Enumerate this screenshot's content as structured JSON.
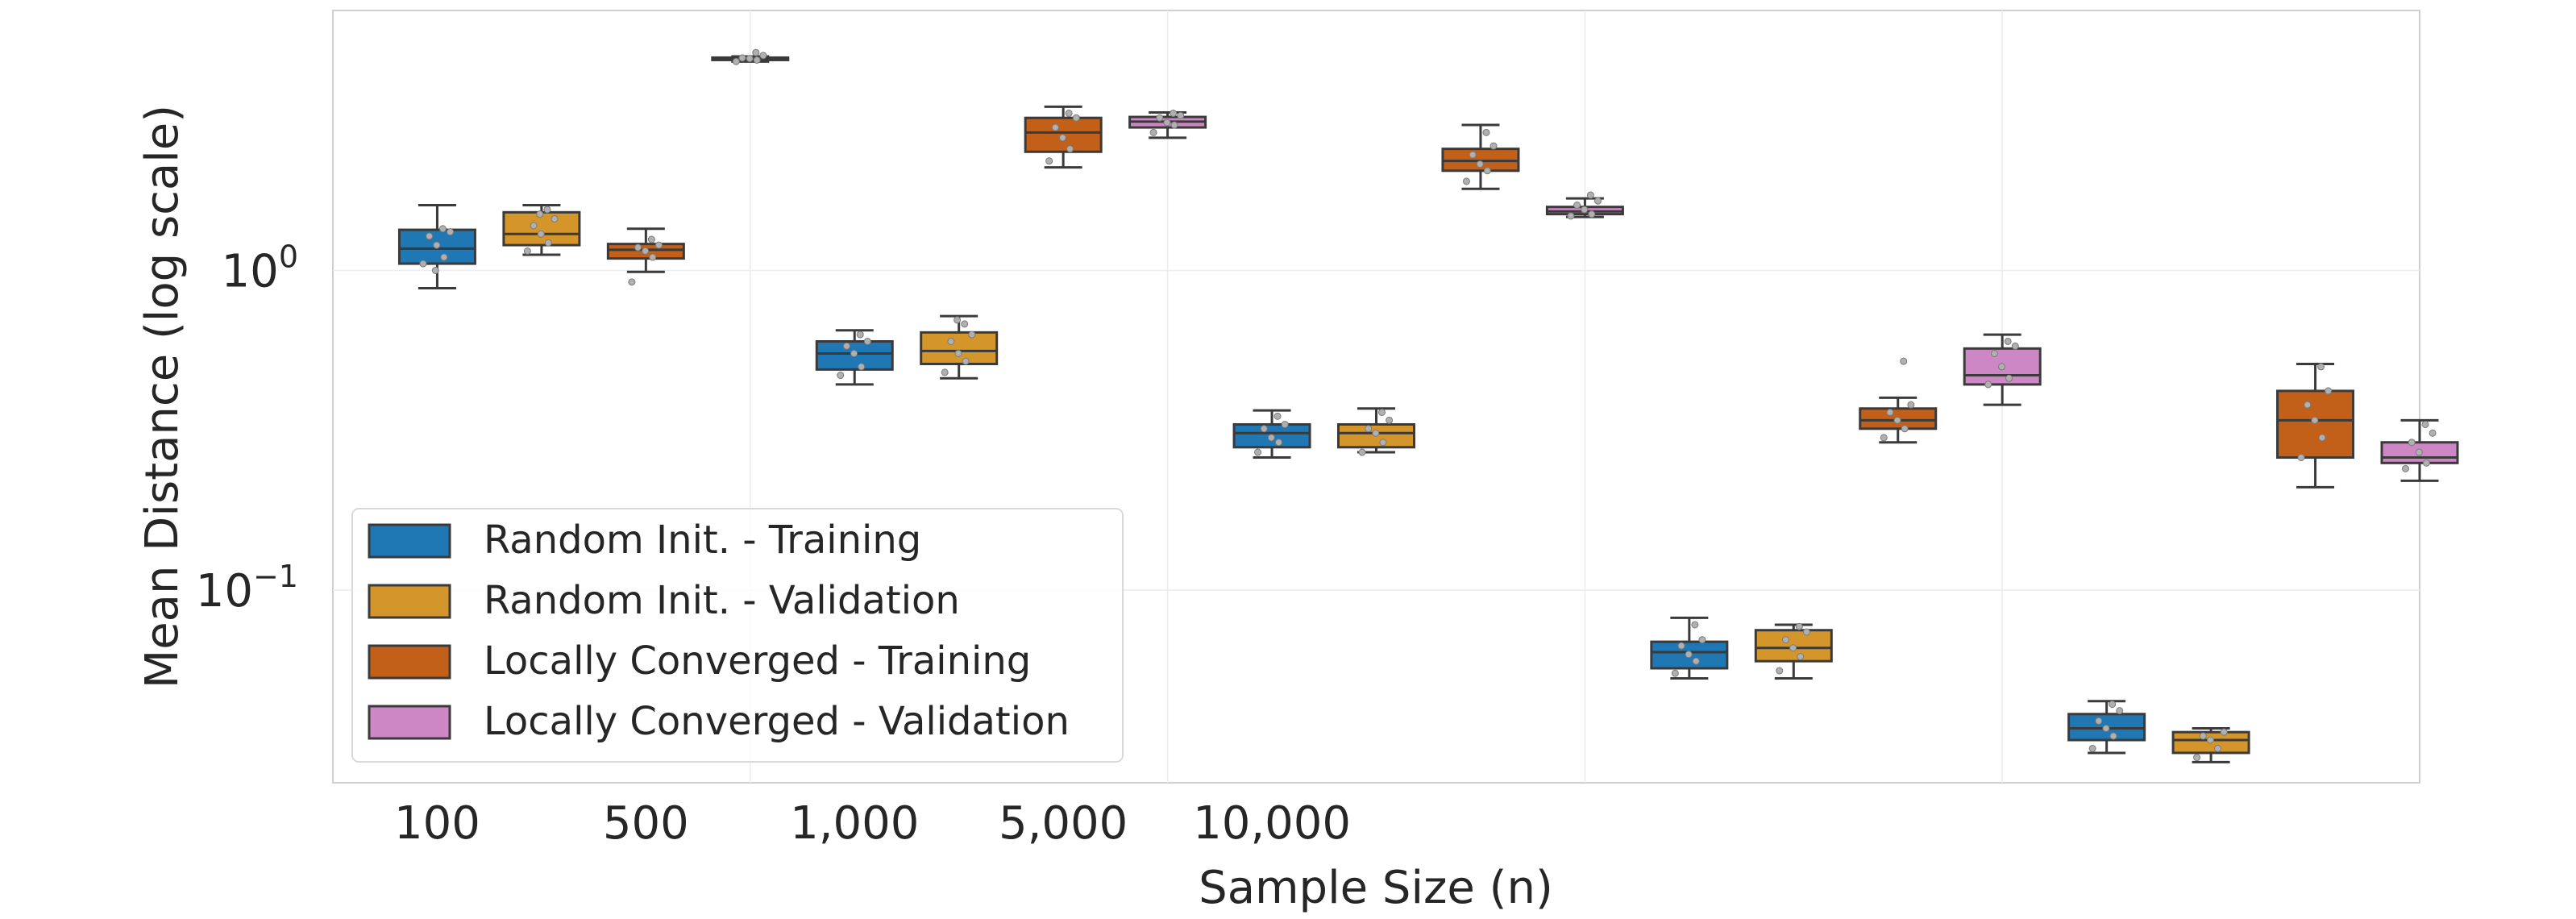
{
  "chart_data": {
    "type": "box",
    "title": "",
    "xlabel": "Sample Size (n)",
    "ylabel": "Mean Distance (log scale)",
    "yscale": "log",
    "ylim": [
      0.025,
      6.5
    ],
    "grid": true,
    "legend_position": "lower-left",
    "categories": [
      "100",
      "500",
      "1,000",
      "5,000",
      "10,000"
    ],
    "x_group_labels": [
      "100",
      "500",
      "1,000",
      "5,000",
      "10,000"
    ],
    "y_tick_labels": [
      {
        "value": 1.0,
        "base": "10",
        "exp": "0"
      },
      {
        "value": 0.1,
        "base": "10",
        "exp": "−1"
      }
    ],
    "series": [
      {
        "name": "Random Init. - Training",
        "color": "#1f77b4"
      },
      {
        "name": "Random Init. - Validation",
        "color": "#d4962a"
      },
      {
        "name": "Locally Converged - Training",
        "color": "#c2601a"
      },
      {
        "name": "Locally Converged - Validation",
        "color": "#cc87c4"
      }
    ],
    "boxes": [
      {
        "series": 0,
        "slot": 0.0,
        "whislo": 0.88,
        "q1": 1.05,
        "med": 1.17,
        "q3": 1.34,
        "whishi": 1.6,
        "points": [
          1.05,
          1.1,
          1.2,
          1.28,
          1.32,
          1.35,
          1.0
        ]
      },
      {
        "series": 1,
        "slot": 0.5,
        "whislo": 1.12,
        "q1": 1.2,
        "med": 1.3,
        "q3": 1.52,
        "whishi": 1.6,
        "points": [
          1.15,
          1.22,
          1.3,
          1.38,
          1.45,
          1.55,
          1.5
        ]
      },
      {
        "series": 2,
        "slot": 1.0,
        "whislo": 0.99,
        "q1": 1.09,
        "med": 1.16,
        "q3": 1.21,
        "whishi": 1.35,
        "points": [
          0.92,
          1.1,
          1.15,
          1.18,
          1.2,
          1.25
        ]
      },
      {
        "series": 3,
        "slot": 1.5,
        "whislo": 4.5,
        "q1": 4.56,
        "med": 4.6,
        "q3": 4.63,
        "whishi": 4.67,
        "points": [
          4.5,
          4.55,
          4.6,
          4.62,
          4.7,
          4.8
        ]
      },
      {
        "series": 0,
        "slot": 2.0,
        "whislo": 0.44,
        "q1": 0.49,
        "med": 0.55,
        "q3": 0.6,
        "whishi": 0.65,
        "points": [
          0.47,
          0.5,
          0.55,
          0.58,
          0.6,
          0.63
        ]
      },
      {
        "series": 1,
        "slot": 2.5,
        "whislo": 0.46,
        "q1": 0.51,
        "med": 0.56,
        "q3": 0.64,
        "whishi": 0.72,
        "points": [
          0.48,
          0.52,
          0.55,
          0.6,
          0.63,
          0.68,
          0.7
        ]
      },
      {
        "series": 2,
        "slot": 3.0,
        "whislo": 2.1,
        "q1": 2.35,
        "med": 2.7,
        "q3": 3.0,
        "whishi": 3.25,
        "points": [
          2.2,
          2.4,
          2.6,
          2.8,
          3.0,
          3.1
        ]
      },
      {
        "series": 3,
        "slot": 3.5,
        "whislo": 2.6,
        "q1": 2.8,
        "med": 2.92,
        "q3": 3.02,
        "whishi": 3.12,
        "points": [
          2.7,
          2.85,
          2.9,
          3.0,
          3.05,
          3.1
        ]
      },
      {
        "series": 0,
        "slot": 4.0,
        "whislo": 0.26,
        "q1": 0.28,
        "med": 0.31,
        "q3": 0.33,
        "whishi": 0.365,
        "points": [
          0.27,
          0.29,
          0.3,
          0.32,
          0.33,
          0.35
        ]
      },
      {
        "series": 1,
        "slot": 4.5,
        "whislo": 0.27,
        "q1": 0.28,
        "med": 0.31,
        "q3": 0.33,
        "whishi": 0.37,
        "points": [
          0.27,
          0.29,
          0.31,
          0.32,
          0.34,
          0.36
        ]
      },
      {
        "series": 2,
        "slot": 5.0,
        "whislo": 1.8,
        "q1": 2.05,
        "med": 2.2,
        "q3": 2.4,
        "whishi": 2.85,
        "points": [
          1.9,
          2.05,
          2.15,
          2.3,
          2.45,
          2.7
        ]
      },
      {
        "series": 3,
        "slot": 5.5,
        "whislo": 1.47,
        "q1": 1.5,
        "med": 1.53,
        "q3": 1.58,
        "whishi": 1.68,
        "points": [
          1.48,
          1.5,
          1.55,
          1.6,
          1.65,
          1.72
        ]
      },
      {
        "series": 0,
        "slot": 6.0,
        "whislo": 0.053,
        "q1": 0.057,
        "med": 0.064,
        "q3": 0.069,
        "whishi": 0.082,
        "points": [
          0.055,
          0.06,
          0.063,
          0.067,
          0.07,
          0.078
        ]
      },
      {
        "series": 1,
        "slot": 6.5,
        "whislo": 0.053,
        "q1": 0.06,
        "med": 0.066,
        "q3": 0.075,
        "whishi": 0.078,
        "points": [
          0.056,
          0.062,
          0.066,
          0.07,
          0.074,
          0.077
        ]
      },
      {
        "series": 2,
        "slot": 7.0,
        "whislo": 0.29,
        "q1": 0.32,
        "med": 0.34,
        "q3": 0.37,
        "whishi": 0.4,
        "points": [
          0.3,
          0.32,
          0.34,
          0.36,
          0.38,
          0.52
        ]
      },
      {
        "series": 3,
        "slot": 7.5,
        "whislo": 0.38,
        "q1": 0.44,
        "med": 0.47,
        "q3": 0.57,
        "whishi": 0.63,
        "points": [
          0.44,
          0.46,
          0.5,
          0.55,
          0.58,
          0.6
        ]
      },
      {
        "series": 0,
        "slot": 8.0,
        "whislo": 0.031,
        "q1": 0.034,
        "med": 0.037,
        "q3": 0.041,
        "whishi": 0.045,
        "points": [
          0.032,
          0.035,
          0.037,
          0.039,
          0.042,
          0.044
        ]
      },
      {
        "series": 1,
        "slot": 8.5,
        "whislo": 0.029,
        "q1": 0.031,
        "med": 0.034,
        "q3": 0.036,
        "whishi": 0.037,
        "points": [
          0.03,
          0.032,
          0.034,
          0.035,
          0.036
        ]
      },
      {
        "series": 2,
        "slot": 9.0,
        "whislo": 0.21,
        "q1": 0.26,
        "med": 0.34,
        "q3": 0.42,
        "whishi": 0.51,
        "points": [
          0.26,
          0.3,
          0.34,
          0.38,
          0.42,
          0.5
        ]
      },
      {
        "series": 3,
        "slot": 9.5,
        "whislo": 0.22,
        "q1": 0.25,
        "med": 0.26,
        "q3": 0.29,
        "whishi": 0.34,
        "points": [
          0.24,
          0.25,
          0.27,
          0.29,
          0.31,
          0.33
        ]
      }
    ]
  }
}
